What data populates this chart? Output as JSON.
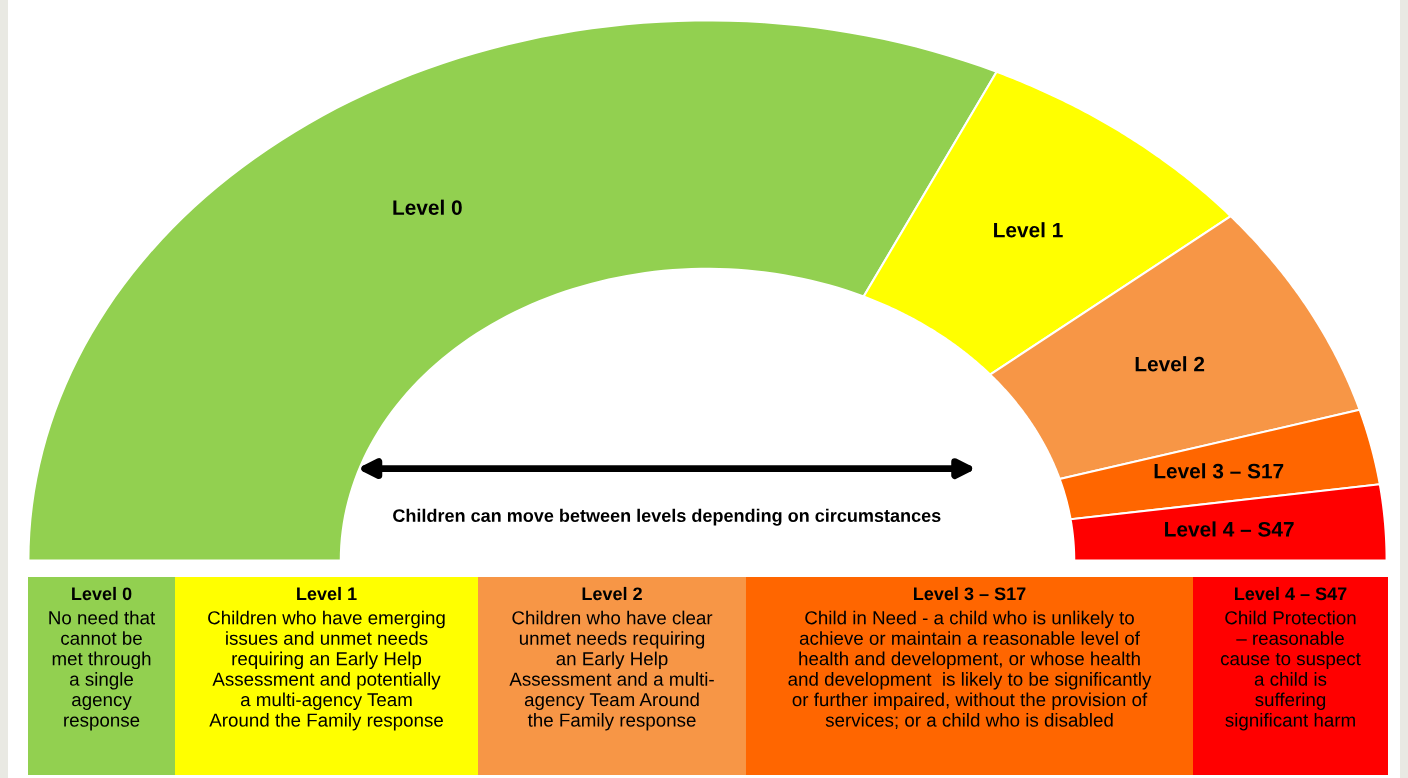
{
  "chart_data": {
    "type": "donut",
    "categories": [
      "Level 0",
      "Level 1",
      "Level 2",
      "Level 3 – S17",
      "Level 4 – S47"
    ],
    "values": [
      64,
      14,
      13,
      4.5,
      4.5
    ],
    "colors": [
      "#92d050",
      "#ffff00",
      "#f79646",
      "#ff6600",
      "#ff0000"
    ],
    "annotations": [
      "Children can move between levels depending on circumstances",
      "No need that\ncannot be\nmet through\na single\nagency\nresponse",
      "Children who have emerging\nissues and unmet needs\nrequiring an Early Help\nAssessment and potentially\na multi-agency Team\nAround the Family response",
      "Children who have clear\nunmet needs requiring\nan Early Help\nAssessment and a multi-\nagency Team Around\nthe Family response",
      "Child in Need - a child who is unlikely to\nachieve or maintain a reasonable level of\nhealth and development, or whose health\nand development  is likely to be significantly\nor further impaired, without the provision of\nservices; or a child who is disabled",
      "Child Protection\n– reasonable\ncause to suspect\na child is\nsuffering\nsignificant harm"
    ]
  }
}
